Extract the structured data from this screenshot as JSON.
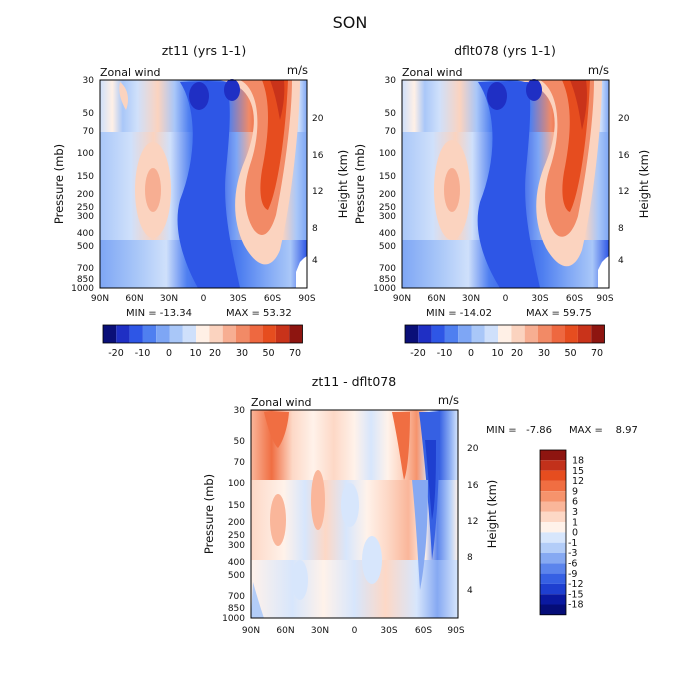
{
  "figure": {
    "season": "SON"
  },
  "chart_data": [
    {
      "id": "zt11",
      "type": "heatmap",
      "title": "zt11 (yrs 1-1)",
      "corner_left": "Zonal wind",
      "corner_right": "m/s",
      "ylabel": "Pressure (mb)",
      "ylabel_right": "Height (km)",
      "x_ticks": [
        "90N",
        "60N",
        "30N",
        "0",
        "30S",
        "60S",
        "90S"
      ],
      "y_ticks": [
        "30",
        "50",
        "70",
        "100",
        "150",
        "200",
        "250",
        "300",
        "400",
        "500",
        "700",
        "850",
        "1000"
      ],
      "y_ticks_right": [
        "4",
        "8",
        "12",
        "16",
        "20"
      ],
      "min_text": "MIN = -13.34",
      "max_text": "MAX = 53.32",
      "levels": [
        "-20",
        "-10",
        "0",
        "10",
        "20",
        "30",
        "50",
        "70"
      ]
    },
    {
      "id": "dflt078",
      "type": "heatmap",
      "title": "dflt078 (yrs 1-1)",
      "corner_left": "Zonal wind",
      "corner_right": "m/s",
      "ylabel": "Pressure (mb)",
      "ylabel_right": "Height (km)",
      "x_ticks": [
        "90N",
        "60N",
        "30N",
        "0",
        "30S",
        "60S",
        "90S"
      ],
      "y_ticks": [
        "30",
        "50",
        "70",
        "100",
        "150",
        "200",
        "250",
        "300",
        "400",
        "500",
        "700",
        "850",
        "1000"
      ],
      "y_ticks_right": [
        "4",
        "8",
        "12",
        "16",
        "20"
      ],
      "min_text": "MIN = -14.02",
      "max_text": "MAX = 59.75",
      "levels": [
        "-20",
        "-10",
        "0",
        "10",
        "20",
        "30",
        "50",
        "70"
      ]
    },
    {
      "id": "diff",
      "type": "heatmap",
      "title": "zt11 - dflt078",
      "corner_left": "Zonal wind",
      "corner_right": "m/s",
      "ylabel": "Pressure (mb)",
      "ylabel_right": "Height (km)",
      "x_ticks": [
        "90N",
        "60N",
        "30N",
        "0",
        "30S",
        "60S",
        "90S"
      ],
      "y_ticks": [
        "30",
        "50",
        "70",
        "100",
        "150",
        "200",
        "250",
        "300",
        "400",
        "500",
        "700",
        "850",
        "1000"
      ],
      "y_ticks_right": [
        "4",
        "8",
        "12",
        "16",
        "20"
      ],
      "min_text": "MIN =   -7.86",
      "max_text": "MAX =    8.97",
      "levels": [
        "18",
        "15",
        "12",
        "9",
        "6",
        "3",
        "1",
        "0",
        "-1",
        "-3",
        "-6",
        "-9",
        "-12",
        "-15",
        "-18"
      ]
    }
  ],
  "colors": {
    "top_bar": [
      "#0a0f78",
      "#1f2fc4",
      "#2e56e6",
      "#4f7ff0",
      "#7ea6f5",
      "#a9c7f8",
      "#cfe0fb",
      "#fff0e6",
      "#fbd3bf",
      "#f7ae92",
      "#f28a66",
      "#ee6840",
      "#e64d1f",
      "#c9331a",
      "#8e1510"
    ],
    "bottom_bar": [
      "#8e1510",
      "#c2311b",
      "#e64d1f",
      "#f06e42",
      "#f6936c",
      "#fab69a",
      "#fdd8c6",
      "#fff2ea",
      "#d7e6fc",
      "#b3cdf8",
      "#86a9f2",
      "#5b84ec",
      "#3660e3",
      "#1e3fd0",
      "#0a19a0",
      "#050d78"
    ]
  }
}
